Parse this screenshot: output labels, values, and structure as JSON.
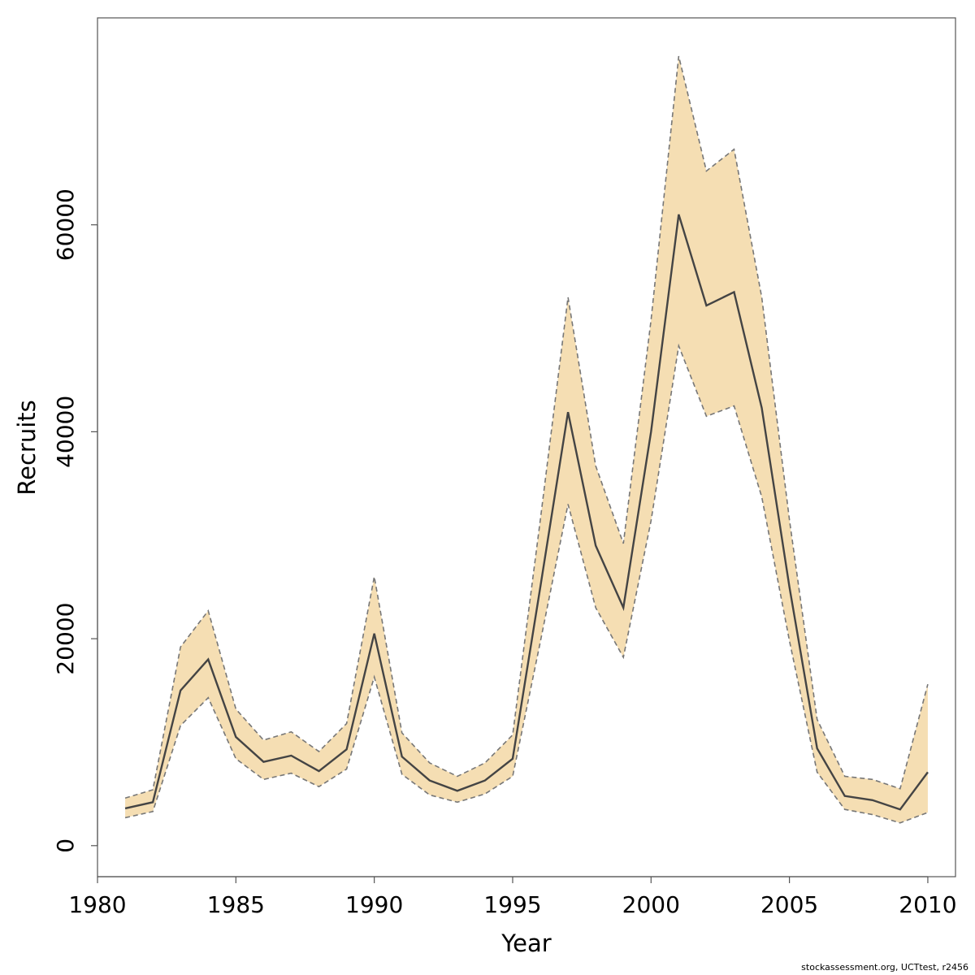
{
  "chart_data": {
    "type": "line",
    "xlabel": "Year",
    "ylabel": "Recruits",
    "xlim": [
      1980,
      2011
    ],
    "ylim": [
      -3000,
      80000
    ],
    "x_ticks": [
      "1980",
      "1985",
      "1990",
      "1995",
      "2000",
      "2005",
      "2010"
    ],
    "y_ticks": [
      "0",
      "20000",
      "40000",
      "60000"
    ],
    "grid": false,
    "legend": "none",
    "band_color": "#f5deb3",
    "band_edge_color": "#777777",
    "line_color": "#444444",
    "x": [
      1981,
      1982,
      1983,
      1984,
      1985,
      1986,
      1987,
      1988,
      1989,
      1990,
      1991,
      1992,
      1993,
      1994,
      1995,
      1996,
      1997,
      1998,
      1999,
      2000,
      2001,
      2002,
      2003,
      2004,
      2005,
      2006,
      2007,
      2008,
      2009,
      2010
    ],
    "series": [
      {
        "values": [
          3600,
          4200,
          15000,
          18000,
          10500,
          8100,
          8700,
          7200,
          9300,
          20500,
          8600,
          6300,
          5300,
          6300,
          8400,
          25000,
          41900,
          29000,
          23000,
          40000,
          61000,
          52200,
          53500,
          42300,
          25000,
          9400,
          4800,
          4400,
          3500,
          7100
        ]
      },
      {
        "values": [
          4600,
          5400,
          19200,
          22700,
          13200,
          10200,
          11000,
          9100,
          11800,
          26000,
          10900,
          8000,
          6700,
          8000,
          10700,
          31500,
          53000,
          36700,
          29200,
          50800,
          76300,
          65200,
          67300,
          53000,
          31500,
          12200,
          6700,
          6400,
          5500,
          15600
        ]
      },
      {
        "values": [
          2700,
          3300,
          11600,
          14300,
          8400,
          6400,
          7000,
          5700,
          7400,
          16300,
          6900,
          4900,
          4200,
          5000,
          6700,
          19700,
          33000,
          23000,
          18200,
          31400,
          48300,
          41500,
          42500,
          33700,
          19800,
          7100,
          3500,
          3000,
          2200,
          3200
        ]
      }
    ]
  },
  "footer": "stockassessment.org, UCTtest, r2456"
}
